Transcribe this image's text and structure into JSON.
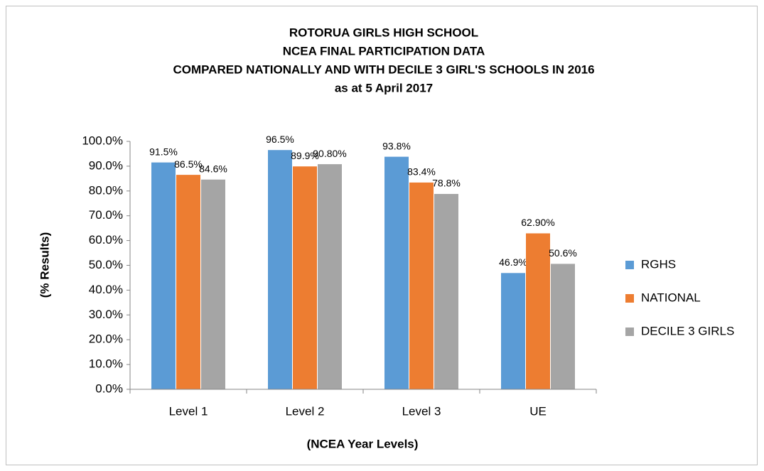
{
  "chart_data": {
    "type": "bar",
    "title": [
      "ROTORUA GIRLS HIGH SCHOOL",
      "NCEA FINAL PARTICIPATION DATA",
      "COMPARED NATIONALLY AND WITH DECILE 3 GIRL'S SCHOOLS IN 2016",
      "as at 5 April 2017"
    ],
    "x_label": "(NCEA Year Levels)",
    "y_label": "(% Results)",
    "categories": [
      "Level 1",
      "Level 2",
      "Level 3",
      "UE"
    ],
    "series": [
      {
        "name": "RGHS",
        "color": "#5b9bd5",
        "values": [
          91.5,
          96.5,
          93.8,
          46.9
        ],
        "value_labels": [
          "91.5%",
          "96.5%",
          "93.8%",
          "46.9%"
        ]
      },
      {
        "name": "NATIONAL",
        "color": "#ed7d31",
        "values": [
          86.5,
          89.9,
          83.4,
          62.9
        ],
        "value_labels": [
          "86.5%",
          "89.9%",
          "83.4%",
          "62.90%"
        ]
      },
      {
        "name": "DECILE 3 GIRLS",
        "color": "#a5a5a5",
        "values": [
          84.6,
          90.8,
          78.8,
          50.6
        ],
        "value_labels": [
          "84.6%",
          "90.80%",
          "78.8%",
          "50.6%"
        ]
      }
    ],
    "ylim": [
      0,
      100
    ],
    "yticks": [
      {
        "value": 0,
        "label": "0.0%"
      },
      {
        "value": 10,
        "label": "10.0%"
      },
      {
        "value": 20,
        "label": "20.0%"
      },
      {
        "value": 30,
        "label": "30.0%"
      },
      {
        "value": 40,
        "label": "40.0%"
      },
      {
        "value": 50,
        "label": "50.0%"
      },
      {
        "value": 60,
        "label": "60.0%"
      },
      {
        "value": 70,
        "label": "70.0%"
      },
      {
        "value": 80,
        "label": "80.0%"
      },
      {
        "value": 90,
        "label": "90.0%"
      },
      {
        "value": 100,
        "label": "100.0%"
      }
    ],
    "legend": "right"
  }
}
